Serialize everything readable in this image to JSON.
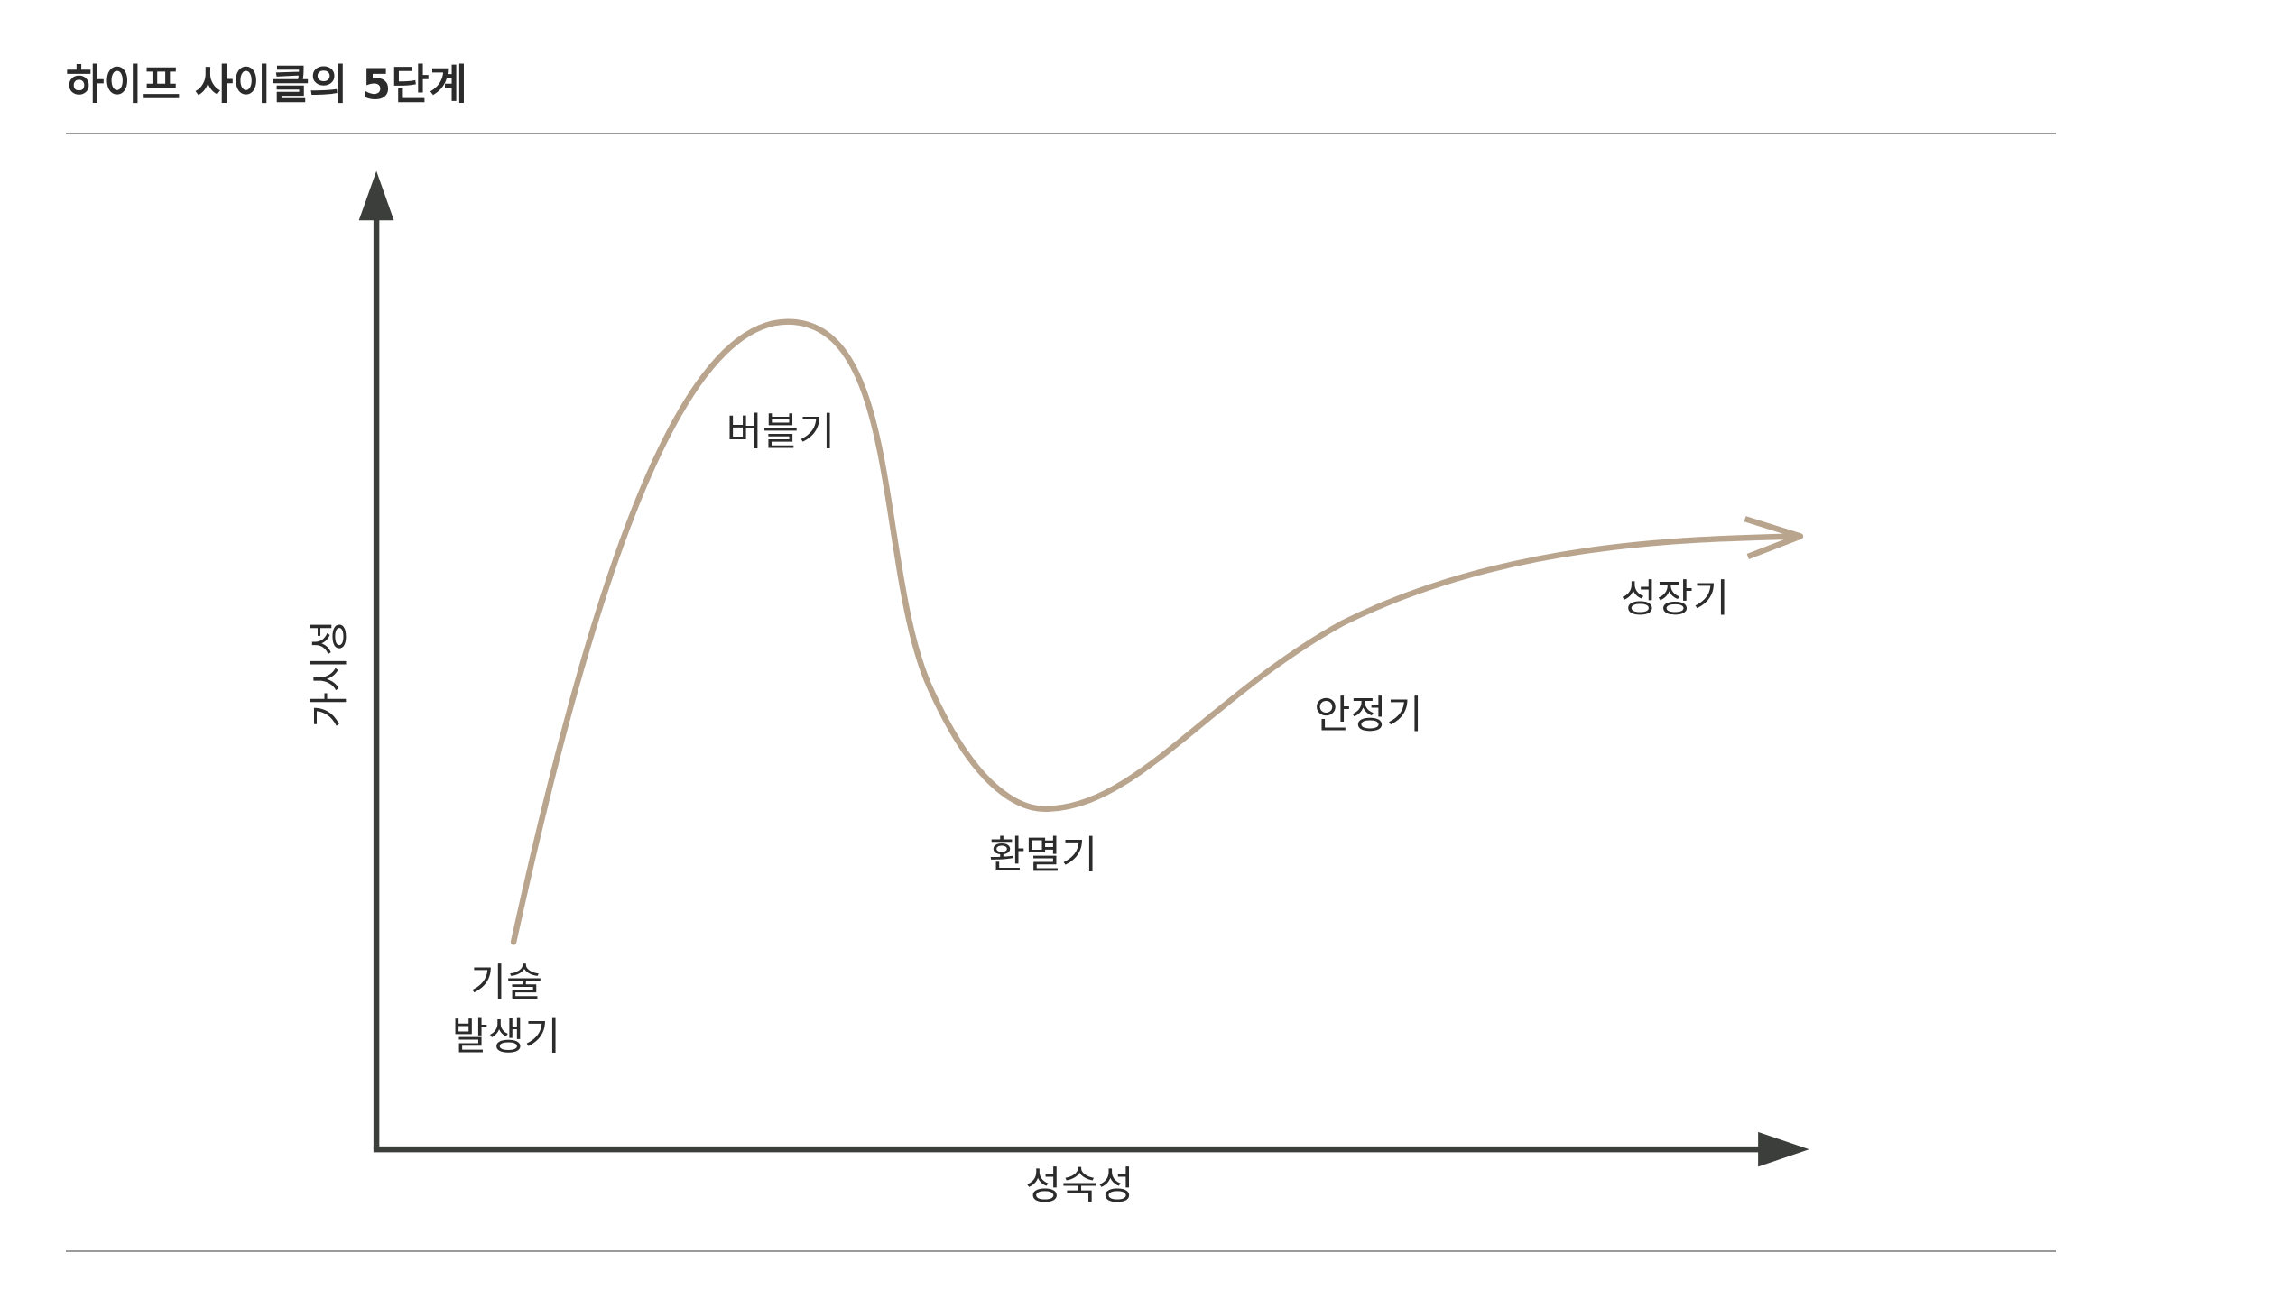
{
  "header": {
    "title": "하이프 사이클의 5단계"
  },
  "axes": {
    "x_label": "성숙성",
    "y_label": "가시성"
  },
  "phases": [
    {
      "lines": [
        "기술",
        "발생기"
      ]
    },
    {
      "lines": [
        "버블기"
      ]
    },
    {
      "lines": [
        "환멸기"
      ]
    },
    {
      "lines": [
        "안정기"
      ]
    },
    {
      "lines": [
        "성장기"
      ]
    }
  ]
}
